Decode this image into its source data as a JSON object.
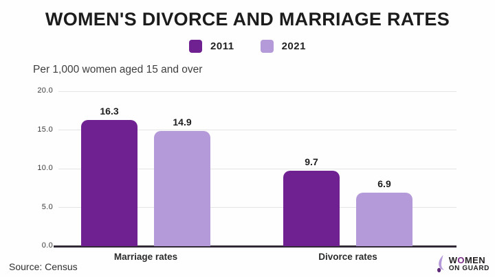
{
  "chart_data": {
    "type": "bar",
    "title": "WOMEN'S DIVORCE AND MARRIAGE RATES",
    "subtitle": "Per 1,000 women aged 15 and over",
    "categories": [
      "Marriage rates",
      "Divorce rates"
    ],
    "series": [
      {
        "name": "2011",
        "color": "#6f2191",
        "values": [
          16.3,
          9.7
        ]
      },
      {
        "name": "2021",
        "color": "#b49ad8",
        "values": [
          14.9,
          6.9
        ]
      }
    ],
    "ylim": [
      0,
      20
    ],
    "yticks": [
      0,
      5,
      10,
      15,
      20
    ],
    "ytick_labels": [
      "0.0",
      "5.0",
      "10.0",
      "15.0",
      "20.0"
    ],
    "grid": true,
    "legend_position": "top-center",
    "value_labels": true,
    "colors": {
      "grid": "#e4e4e4",
      "baseline": "#322936",
      "title_text": "#1d1c1d",
      "label_text": "#1c1c1c"
    }
  },
  "footer": {
    "source": "Source: Census",
    "logo": {
      "line1_pre": "W",
      "line1_o": "O",
      "line1_post": "MEN",
      "line2": "ON GUARD"
    }
  }
}
